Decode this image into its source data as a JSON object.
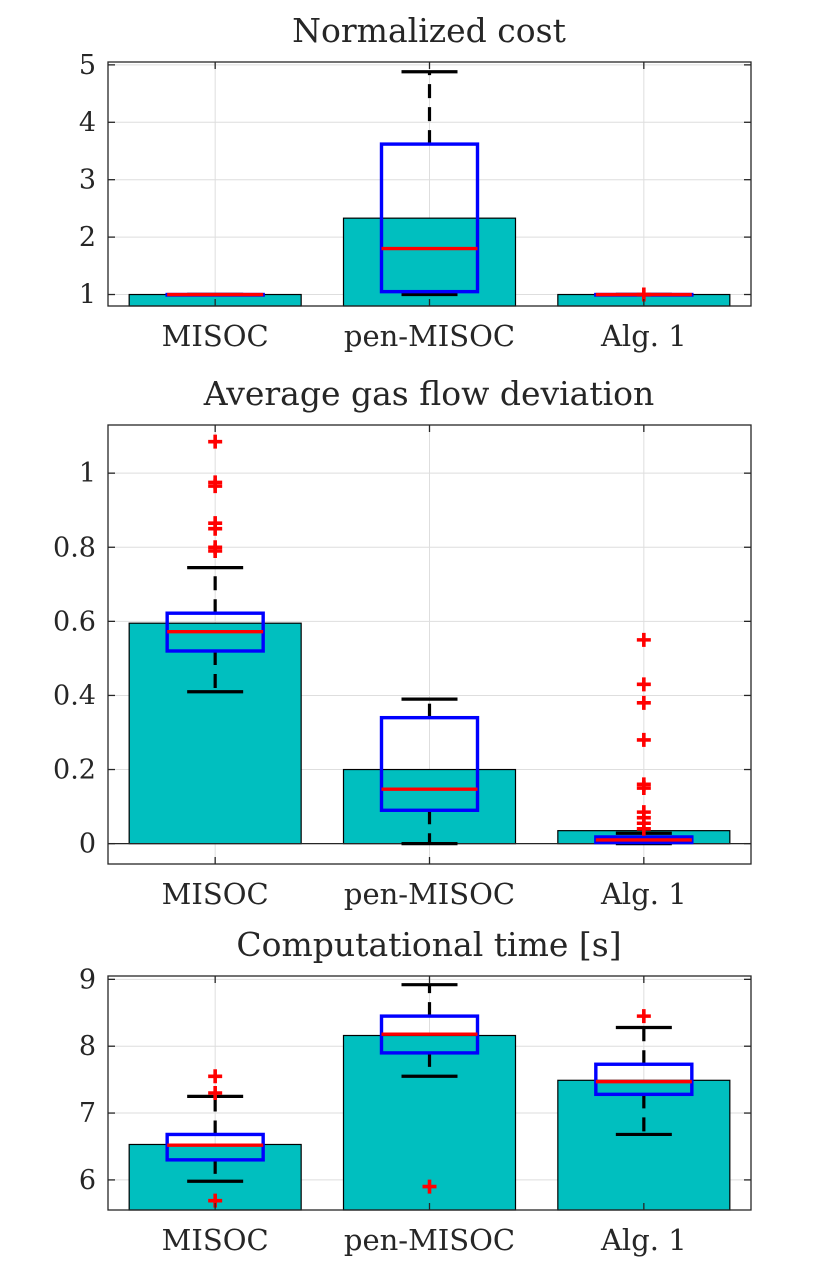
{
  "colors": {
    "bar": "#00bfbf",
    "box": "#0000ff",
    "median": "#ff0000",
    "whisker": "#000000",
    "outlier": "#ff0000",
    "grid": "#dedede",
    "axis": "#262626"
  },
  "chart_data": [
    {
      "type": "bar",
      "overlay": "boxplot",
      "title": "Normalized cost",
      "categories": [
        "MISOC",
        "pen-MISOC",
        "Alg. 1"
      ],
      "ylim": [
        0.8,
        5.05
      ],
      "yticks": [
        1,
        2,
        3,
        4,
        5
      ],
      "ytick_labels": [
        "1",
        "2",
        "3",
        "4",
        "5"
      ],
      "grid": true,
      "zero_line": false,
      "bar_values": [
        1.0,
        2.33,
        1.0
      ],
      "boxes": [
        {
          "q1": 1.0,
          "median": 1.0,
          "q3": 1.0,
          "whisker_low": 1.0,
          "whisker_high": 1.0,
          "outliers": []
        },
        {
          "q1": 1.05,
          "median": 1.8,
          "q3": 3.62,
          "whisker_low": 1.0,
          "whisker_high": 4.88,
          "outliers": []
        },
        {
          "q1": 1.0,
          "median": 1.0,
          "q3": 1.0,
          "whisker_low": 1.0,
          "whisker_high": 1.0,
          "outliers": [
            1.0
          ]
        }
      ]
    },
    {
      "type": "bar",
      "overlay": "boxplot",
      "title": "Average gas flow deviation",
      "categories": [
        "MISOC",
        "pen-MISOC",
        "Alg. 1"
      ],
      "ylim": [
        -0.055,
        1.13
      ],
      "yticks": [
        0,
        0.2,
        0.4,
        0.6,
        0.8,
        1
      ],
      "ytick_labels": [
        "0",
        "0.2",
        "0.4",
        "0.6",
        "0.8",
        "1"
      ],
      "grid": true,
      "zero_line": true,
      "bar_values": [
        0.595,
        0.2,
        0.035
      ],
      "boxes": [
        {
          "q1": 0.52,
          "median": 0.572,
          "q3": 0.622,
          "whisker_low": 0.41,
          "whisker_high": 0.745,
          "outliers": [
            0.79,
            0.8,
            0.85,
            0.865,
            0.965,
            0.975,
            1.085
          ]
        },
        {
          "q1": 0.09,
          "median": 0.147,
          "q3": 0.34,
          "whisker_low": 0.0,
          "whisker_high": 0.39,
          "outliers": []
        },
        {
          "q1": 0.003,
          "median": 0.01,
          "q3": 0.018,
          "whisker_low": 0.0,
          "whisker_high": 0.028,
          "outliers": [
            0.04,
            0.055,
            0.07,
            0.085,
            0.15,
            0.16,
            0.28,
            0.38,
            0.43,
            0.55
          ]
        }
      ]
    },
    {
      "type": "bar",
      "overlay": "boxplot",
      "title": "Computational time [s]",
      "categories": [
        "MISOC",
        "pen-MISOC",
        "Alg. 1"
      ],
      "ylim": [
        5.55,
        9.05
      ],
      "yticks": [
        6,
        7,
        8,
        9
      ],
      "ytick_labels": [
        "6",
        "7",
        "8",
        "9"
      ],
      "grid": true,
      "zero_line": false,
      "bar_values": [
        6.53,
        8.16,
        7.49
      ],
      "boxes": [
        {
          "q1": 6.3,
          "median": 6.52,
          "q3": 6.68,
          "whisker_low": 5.98,
          "whisker_high": 7.25,
          "outliers": [
            5.69,
            7.3,
            7.55
          ]
        },
        {
          "q1": 7.9,
          "median": 8.18,
          "q3": 8.45,
          "whisker_low": 7.55,
          "whisker_high": 8.92,
          "outliers": [
            5.9
          ]
        },
        {
          "q1": 7.28,
          "median": 7.47,
          "q3": 7.73,
          "whisker_low": 6.68,
          "whisker_high": 8.28,
          "outliers": [
            8.45
          ]
        }
      ]
    }
  ]
}
